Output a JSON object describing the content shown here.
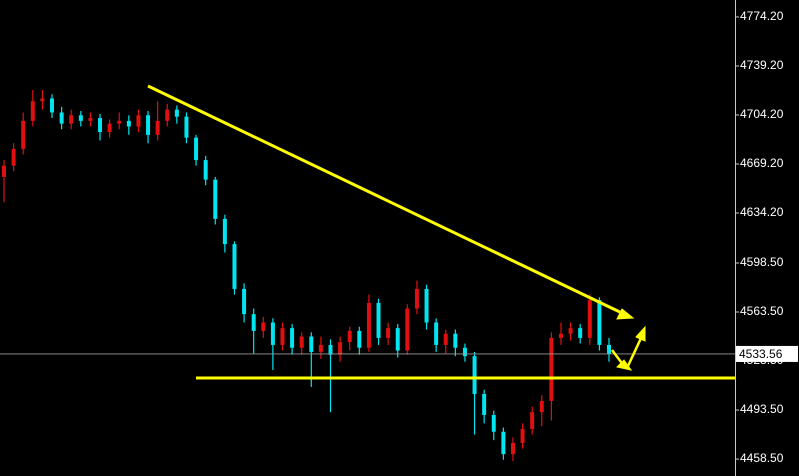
{
  "chart_data": {
    "type": "candlestick",
    "ylim": [
      4446.4,
      4786.3
    ],
    "yticks": [
      {
        "value": 4774.2,
        "label": "4774.20"
      },
      {
        "value": 4739.2,
        "label": "4739.20"
      },
      {
        "value": 4704.2,
        "label": "4704.20"
      },
      {
        "value": 4669.2,
        "label": "4669.20"
      },
      {
        "value": 4634.2,
        "label": "4634.20"
      },
      {
        "value": 4598.5,
        "label": "4598.50"
      },
      {
        "value": 4563.5,
        "label": "4563.50"
      },
      {
        "value": 4528.5,
        "label": "4528.50"
      },
      {
        "value": 4493.5,
        "label": "4493.50"
      },
      {
        "value": 4458.5,
        "label": "4458.50"
      }
    ],
    "last_price": 4533.56,
    "up_color": "#e01010",
    "down_color": "#00e5f0",
    "open": [
      4660,
      4668,
      4680,
      4700,
      4714,
      4716,
      4706,
      4698,
      4704,
      4700,
      4702,
      4692,
      4698,
      4700,
      4696,
      4704,
      4690,
      4700,
      4708,
      4703,
      4688,
      4672,
      4658,
      4630,
      4612,
      4580,
      4562,
      4550,
      4556,
      4540,
      4552,
      4538,
      4546,
      4535,
      4540,
      4533,
      4542,
      4550,
      4538,
      4570,
      4545,
      4552,
      4536,
      4566,
      4580,
      4556,
      4540,
      4548,
      4538,
      4532,
      4505,
      4490,
      4478,
      4462,
      4470,
      4480,
      4492,
      4500,
      4545,
      4548,
      4552,
      4545,
      4572,
      4540
    ],
    "high": [
      4672,
      4684,
      4706,
      4722,
      4722,
      4719,
      4710,
      4708,
      4707,
      4706,
      4705,
      4701,
      4706,
      4704,
      4708,
      4707,
      4714,
      4712,
      4711,
      4706,
      4690,
      4675,
      4660,
      4633,
      4614,
      4584,
      4566,
      4560,
      4559,
      4556,
      4555,
      4549,
      4549,
      4546,
      4544,
      4546,
      4553,
      4553,
      4576,
      4573,
      4556,
      4555,
      4569,
      4586,
      4583,
      4559,
      4551,
      4551,
      4541,
      4535,
      4508,
      4493,
      4481,
      4474,
      4484,
      4496,
      4504,
      4549,
      4556,
      4556,
      4555,
      4576,
      4574,
      4545
    ],
    "low": [
      4642,
      4664,
      4676,
      4696,
      4708,
      4702,
      4694,
      4694,
      4696,
      4696,
      4686,
      4688,
      4694,
      4690,
      4692,
      4684,
      4686,
      4696,
      4698,
      4684,
      4668,
      4654,
      4626,
      4606,
      4576,
      4556,
      4534,
      4545,
      4522,
      4536,
      4533,
      4533,
      4510,
      4530,
      4492,
      4528,
      4536,
      4533,
      4535,
      4540,
      4540,
      4531,
      4533,
      4562,
      4551,
      4535,
      4534,
      4532,
      4528,
      4476,
      4484,
      4472,
      4458,
      4457,
      4466,
      4476,
      4482,
      4486,
      4540,
      4543,
      4541,
      4540,
      4536,
      4528
    ],
    "close": [
      4668,
      4680,
      4700,
      4714,
      4716,
      4706,
      4698,
      4704,
      4700,
      4702,
      4692,
      4698,
      4700,
      4696,
      4704,
      4690,
      4700,
      4708,
      4703,
      4688,
      4672,
      4658,
      4630,
      4612,
      4580,
      4562,
      4550,
      4556,
      4540,
      4552,
      4538,
      4546,
      4535,
      4540,
      4533,
      4542,
      4550,
      4538,
      4570,
      4545,
      4552,
      4536,
      4566,
      4580,
      4556,
      4540,
      4548,
      4538,
      4532,
      4505,
      4490,
      4478,
      4462,
      4470,
      4480,
      4492,
      4500,
      4545,
      4548,
      4552,
      4545,
      4572,
      4540,
      4533.56
    ]
  }
}
